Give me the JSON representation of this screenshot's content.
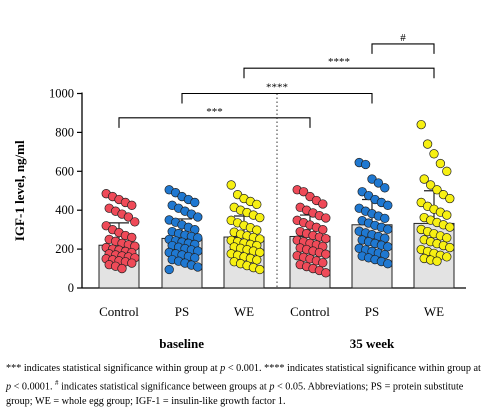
{
  "chart_data": {
    "type": "bar",
    "ylabel": "IGF-1 level, ng/ml",
    "ylim": [
      0,
      1000
    ],
    "yticks": [
      0,
      200,
      400,
      600,
      800,
      1000
    ],
    "categories": [
      "Control",
      "PS",
      "WE",
      "Control",
      "PS",
      "WE"
    ],
    "groups": [
      {
        "label": "baseline",
        "categories": [
          0,
          1,
          2
        ]
      },
      {
        "label": "35 week",
        "categories": [
          3,
          4,
          5
        ]
      }
    ],
    "bar_fill": "#e3e3e3",
    "point_colors": [
      "#ef4a58",
      "#1f78d1",
      "#f7f012",
      "#ef4a58",
      "#1f78d1",
      "#f7f012"
    ],
    "means": [
      220,
      255,
      262,
      265,
      325,
      332
    ],
    "sd_upper": [
      335,
      355,
      370,
      375,
      455,
      500
    ],
    "points": [
      [
        485,
        470,
        455,
        440,
        425,
        410,
        395,
        380,
        365,
        340,
        320,
        300,
        285,
        270,
        260,
        250,
        240,
        230,
        222,
        215,
        208,
        200,
        195,
        188,
        182,
        176,
        170,
        165,
        160,
        155,
        150,
        145,
        140,
        135,
        128,
        120,
        112,
        100
      ],
      [
        505,
        490,
        470,
        455,
        440,
        425,
        410,
        395,
        380,
        365,
        350,
        338,
        325,
        312,
        300,
        290,
        280,
        272,
        265,
        258,
        250,
        243,
        236,
        230,
        224,
        218,
        210,
        203,
        196,
        190,
        183,
        176,
        170,
        162,
        155,
        146,
        138,
        128,
        118,
        108,
        95
      ],
      [
        530,
        480,
        460,
        445,
        430,
        415,
        400,
        388,
        375,
        362,
        348,
        335,
        322,
        310,
        298,
        287,
        277,
        268,
        260,
        252,
        245,
        238,
        231,
        224,
        218,
        211,
        204,
        197,
        190,
        183,
        176,
        168,
        160,
        152,
        144,
        135,
        125,
        115,
        105,
        95
      ],
      [
        505,
        495,
        470,
        450,
        432,
        415,
        400,
        386,
        372,
        360,
        348,
        336,
        324,
        312,
        300,
        290,
        280,
        270,
        262,
        254,
        246,
        238,
        230,
        222,
        214,
        206,
        198,
        190,
        182,
        174,
        166,
        158,
        150,
        140,
        130,
        120,
        110,
        100,
        90,
        78
      ],
      [
        645,
        635,
        560,
        540,
        515,
        495,
        475,
        455,
        440,
        425,
        410,
        395,
        382,
        370,
        358,
        346,
        334,
        322,
        312,
        302,
        292,
        283,
        274,
        265,
        256,
        247,
        238,
        229,
        220,
        212,
        204,
        196,
        188,
        180,
        172,
        164,
        155,
        146,
        136,
        125
      ],
      [
        840,
        740,
        690,
        640,
        600,
        560,
        530,
        505,
        480,
        460,
        440,
        420,
        405,
        390,
        375,
        362,
        349,
        337,
        325,
        313,
        301,
        290,
        279,
        268,
        258,
        248,
        238,
        228,
        218,
        208,
        198,
        188,
        178,
        168,
        160,
        152,
        144,
        138
      ]
    ],
    "brackets": [
      {
        "from": 0,
        "to": 3,
        "level": 875,
        "label": "***"
      },
      {
        "from": 1,
        "to": 4,
        "level": 1000,
        "label": "****"
      },
      {
        "from": 2,
        "to": 5,
        "level": 1130,
        "label": "****"
      },
      {
        "from": 4,
        "to": 5,
        "level": 1255,
        "label": "#"
      }
    ],
    "divider_between": [
      2,
      3
    ],
    "grid": false,
    "legend": "none"
  },
  "caption": {
    "sig_within": "***",
    "text1": " indicates statistical significance within group at ",
    "p": "p",
    "text2": " < 0.001. ",
    "sig_within2": "****",
    "text3": " indicates statistical significance within group at ",
    "text4": " < 0.0001. ",
    "hash": "#",
    "text5": " indicates statistical significance between groups at ",
    "text6": " < 0.05. Abbreviations; PS = protein substitute group; WE = whole egg group; IGF-1 = insulin-like growth factor 1."
  }
}
